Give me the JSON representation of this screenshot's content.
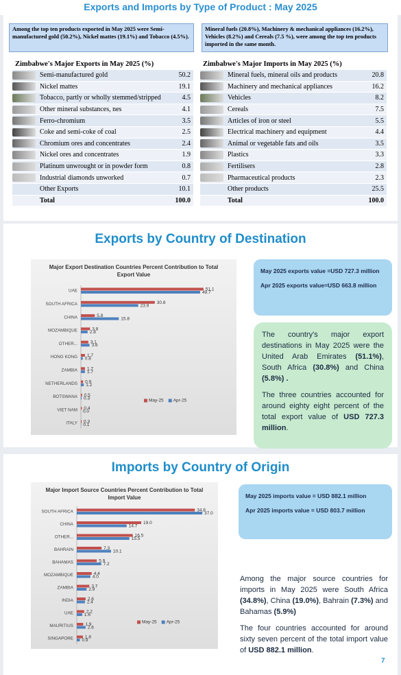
{
  "page_title": "Exports and Imports by Type of Product : May 2025",
  "notes": [
    "Among the top ten products exported in May 2025 were Semi-manufactured gold (50.2%), Nickel mattes (19.1%) and Tobacco (4.5%).",
    "Mineral fuels (20.8%), Machinery & mechanical appliances (16.2%), Vehicles (8.2%) and Cereals (7.5 %), were among the top ten products imported in the same month."
  ],
  "tables": [
    {
      "title": "Zimbabwe's Major Exports in May 2025 (%)",
      "rows": [
        [
          "Semi-manufactured gold",
          "50.2"
        ],
        [
          "Nickel mattes",
          "19.1"
        ],
        [
          "Tobacco, partly or wholly stemmed/stripped",
          "4.5"
        ],
        [
          "Other mineral substances, nes",
          "4.1"
        ],
        [
          "Ferro-chromium",
          "3.5"
        ],
        [
          "Coke and semi-coke of coal",
          "2.5"
        ],
        [
          "Chromium ores and concentrates",
          "2.4"
        ],
        [
          "Nickel ores and concentrates",
          "1.9"
        ],
        [
          "Platinum unwrought or in powder form",
          "0.8"
        ],
        [
          "Industrial diamonds unworked",
          "0.7"
        ],
        [
          "Other Exports",
          "10.1"
        ],
        [
          "Total",
          "100.0"
        ]
      ]
    },
    {
      "title": "Zimbabwe's Major Imports in May 2025 (%)",
      "rows": [
        [
          "Mineral fuels, mineral oils and products",
          "20.8"
        ],
        [
          "Machinery and mechanical appliances",
          "16.2"
        ],
        [
          "Vehicles",
          "8.2"
        ],
        [
          "Cereals",
          "7.5"
        ],
        [
          "Articles of iron or steel",
          "5.5"
        ],
        [
          "Electrical machinery and equipment",
          "4.4"
        ],
        [
          "Animal or vegetable fats and oils",
          "3.5"
        ],
        [
          "Plastics",
          "3.3"
        ],
        [
          "Fertilisers",
          "2.8"
        ],
        [
          "Pharmaceutical products",
          "2.3"
        ],
        [
          "Other products",
          "25.5"
        ],
        [
          "Total",
          "100.0"
        ]
      ]
    }
  ],
  "sections": [
    {
      "title": "Exports by Country of Destination",
      "value_box": [
        "May 2025 exports value =USD 727.3 million",
        "Apr 2025 exports value=USD 663.8 million"
      ],
      "paragraphs": [
        [
          {
            "text": "The country's major export destinations in May 2025 were the United Arab Emirates ",
            "bold": false
          },
          {
            "text": "(51.1%)",
            "bold": true
          },
          {
            "text": ", South Africa ",
            "bold": false
          },
          {
            "text": "(30.8%)",
            "bold": true
          },
          {
            "text": " and China ",
            "bold": false
          },
          {
            "text": "(5.8%) .",
            "bold": true
          }
        ],
        [
          {
            "text": "The three countries accounted for around eighty eight percent of the total export value of ",
            "bold": false
          },
          {
            "text": "USD 727.3 million",
            "bold": true
          },
          {
            "text": ".",
            "bold": false
          }
        ]
      ]
    },
    {
      "title": "Imports by Country of Origin",
      "value_box": [
        "May 2025 imports value = USD 882.1 million",
        "Apr 2025 imports value = USD 803.7 million"
      ],
      "paragraphs": [
        [
          {
            "text": "Among the major source countries for imports in May 2025 were South Africa ",
            "bold": false
          },
          {
            "text": "(34.8%)",
            "bold": true
          },
          {
            "text": ", China ",
            "bold": false
          },
          {
            "text": "(19.0%)",
            "bold": true
          },
          {
            "text": ", Bahrain ",
            "bold": false
          },
          {
            "text": "(7.3%)",
            "bold": true
          },
          {
            "text": " and Bahamas ",
            "bold": false
          },
          {
            "text": "(5.9%)",
            "bold": true
          }
        ],
        [
          {
            "text": "The four countries accounted for around sixty seven percent of the total import value of ",
            "bold": false
          },
          {
            "text": "USD 882.1 million",
            "bold": true
          },
          {
            "text": ".",
            "bold": false
          }
        ]
      ]
    }
  ],
  "page_number": "7",
  "chart_data": [
    {
      "type": "bar",
      "orientation": "horizontal",
      "title": "Major Export Destination Countries Percent Contribution to Total Export Value",
      "categories": [
        "UAE",
        "SOUTH AFRICA",
        "CHINA",
        "MOZAMBIQUE",
        "OTHER...",
        "HONG KONG",
        "ZAMBIA",
        "NETHERLANDS",
        "BOTSWANA",
        "VIET NAM",
        "ITALY"
      ],
      "series": [
        {
          "name": "May-25",
          "color": "#c0504d",
          "values": [
            51.1,
            30.8,
            5.8,
            3.8,
            3.1,
            1.7,
            1.7,
            0.9,
            0.5,
            0.4,
            0.3
          ],
          "value_labels": [
            "51.1",
            "30.8",
            "5.8",
            "3.8",
            "3.1",
            "1.7",
            "1.7",
            "0.9",
            "0.5",
            "0.4",
            "0.3"
          ]
        },
        {
          "name": "Apr-25",
          "color": "#4f81bd",
          "values": [
            49.7,
            23.9,
            15.8,
            2.8,
            3.6,
            0.8,
            1.7,
            1.2,
            0.3,
            0,
            0.1
          ],
          "value_labels": [
            "49.7",
            "23.9",
            "15.8",
            "2.8",
            "3.6",
            "0.8",
            "1.7",
            "1.2",
            "0.3",
            "0.0",
            "0.1"
          ]
        }
      ],
      "xlim": [
        0,
        60
      ],
      "legend": "right"
    },
    {
      "type": "bar",
      "orientation": "horizontal",
      "title": "Major Import Source Countries Percent Contribution to Total Import Value",
      "categories": [
        "SOUTH AFRICA",
        "CHINA",
        "OTHER...",
        "BAHRAIN",
        "BAHAMAS",
        "MOZAMBIQUE",
        "ZAMBIA",
        "INDIA",
        "UAE",
        "MAURITIUS",
        "SINGAPORE"
      ],
      "series": [
        {
          "name": "May-25",
          "color": "#c0504d",
          "values": [
            34.8,
            19.0,
            16.5,
            7.3,
            5.9,
            4.4,
            3.7,
            2.6,
            2.2,
            1.9,
            1.8
          ],
          "value_labels": [
            "34.8",
            "19.0",
            "16.5",
            "7.3",
            "5.9",
            "4.4",
            "3.7",
            "2.6",
            "2.2",
            "1.9",
            "1.8"
          ]
        },
        {
          "name": "Apr-25",
          "color": "#4f81bd",
          "values": [
            37.0,
            14.7,
            15.5,
            10.1,
            7.2,
            4.0,
            2.9,
            2.4,
            1.6,
            2.6,
            0.9
          ],
          "value_labels": [
            "37.0",
            "14.7",
            "15.5",
            "10.1",
            "7.2",
            "4.0",
            "2.9",
            "2.4",
            "1.6",
            "2.6",
            "0.9"
          ]
        }
      ],
      "xlim": [
        0,
        40
      ],
      "legend": "right"
    }
  ]
}
